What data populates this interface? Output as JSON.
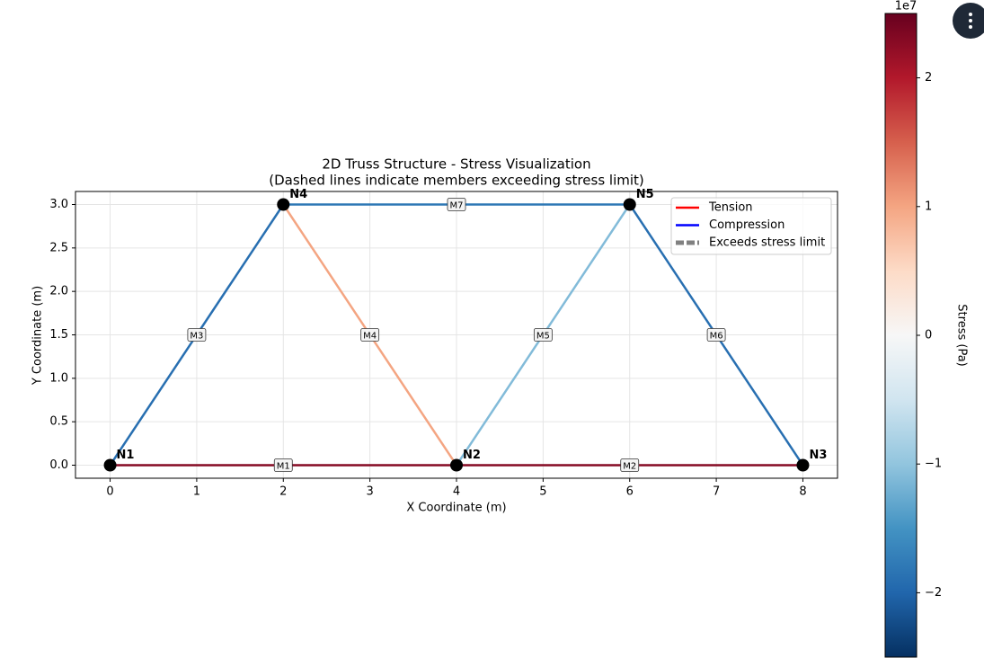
{
  "chart_data": {
    "type": "truss",
    "title": "2D Truss Structure - Stress Visualization",
    "subtitle": "(Dashed lines indicate members exceeding stress limit)",
    "x_label": "X Coordinate (m)",
    "y_label": "Y Coordinate (m)",
    "xlim": [
      -0.4,
      8.4
    ],
    "ylim": [
      -0.15,
      3.15
    ],
    "xticks": [
      0,
      1,
      2,
      3,
      4,
      5,
      6,
      7,
      8
    ],
    "yticks": [
      {
        "value": 0,
        "label": "0.0"
      },
      {
        "value": 0.5,
        "label": "0.5"
      },
      {
        "value": 1,
        "label": "1.0"
      },
      {
        "value": 1.5,
        "label": "1.5"
      },
      {
        "value": 2,
        "label": "2.0"
      },
      {
        "value": 2.5,
        "label": "2.5"
      },
      {
        "value": 3,
        "label": "3.0"
      }
    ],
    "grid": true,
    "nodes": [
      {
        "name": "N1",
        "x": 0,
        "y": 0
      },
      {
        "name": "N2",
        "x": 4,
        "y": 0
      },
      {
        "name": "N3",
        "x": 8,
        "y": 0
      },
      {
        "name": "N4",
        "x": 2,
        "y": 3
      },
      {
        "name": "N5",
        "x": 6,
        "y": 3
      }
    ],
    "members": [
      {
        "name": "M1",
        "from": "N1",
        "to": "N2",
        "stress": 2.3
      },
      {
        "name": "M2",
        "from": "N2",
        "to": "N3",
        "stress": 2.3
      },
      {
        "name": "M3",
        "from": "N1",
        "to": "N4",
        "stress": -1.9
      },
      {
        "name": "M4",
        "from": "N4",
        "to": "N2",
        "stress": 1.0
      },
      {
        "name": "M5",
        "from": "N2",
        "to": "N5",
        "stress": -1.1
      },
      {
        "name": "M6",
        "from": "N5",
        "to": "N3",
        "stress": -1.9
      },
      {
        "name": "M7",
        "from": "N4",
        "to": "N5",
        "stress": -1.8
      }
    ],
    "legend": "upper right",
    "legend_entries": [
      {
        "name": "Tension",
        "color": "#ff0000"
      },
      {
        "name": "Compression",
        "color": "#0000ff"
      },
      {
        "name": "Exceeds stress limit",
        "color": "#808080"
      }
    ],
    "colormap": "RdBu_r",
    "colorbar_label": "Stress (Pa)",
    "colorbar_offset": "1e7",
    "clim": [
      -2.5,
      2.5
    ],
    "cticks": [
      {
        "value": -2,
        "label": "−2"
      },
      {
        "value": -1,
        "label": "−1"
      },
      0,
      1,
      2
    ]
  }
}
